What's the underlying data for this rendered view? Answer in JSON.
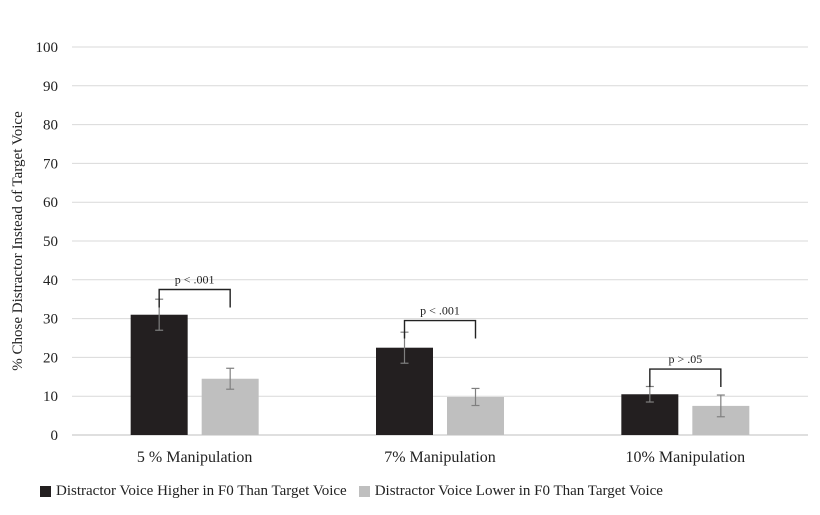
{
  "chart_data": {
    "type": "bar",
    "ylabel": "% Chose Distractor Instead of Target Voice",
    "ylim": [
      0,
      100
    ],
    "yticks": [
      0,
      10,
      20,
      30,
      40,
      50,
      60,
      70,
      80,
      90,
      100
    ],
    "grid": true,
    "legend_position": "bottom-left",
    "categories": [
      "5 % Manipulation",
      "7% Manipulation",
      "10% Manipulation"
    ],
    "series": [
      {
        "name": "Distractor Voice Higher in F0 Than Target Voice",
        "color": "#231f20",
        "values": [
          31,
          22.5,
          10.5
        ],
        "error": [
          4,
          4,
          2
        ]
      },
      {
        "name": "Distractor Voice Lower in F0 Than Target Voice",
        "color": "#bfbfbf",
        "values": [
          14.5,
          9.8,
          7.5
        ],
        "error": [
          2.7,
          2.2,
          2.8
        ]
      }
    ],
    "annotations": [
      {
        "category": 0,
        "text": "p < .001",
        "y": 37.5
      },
      {
        "category": 1,
        "text": "p < .001",
        "y": 29.5
      },
      {
        "category": 2,
        "text": "p > .05",
        "y": 17
      }
    ]
  }
}
